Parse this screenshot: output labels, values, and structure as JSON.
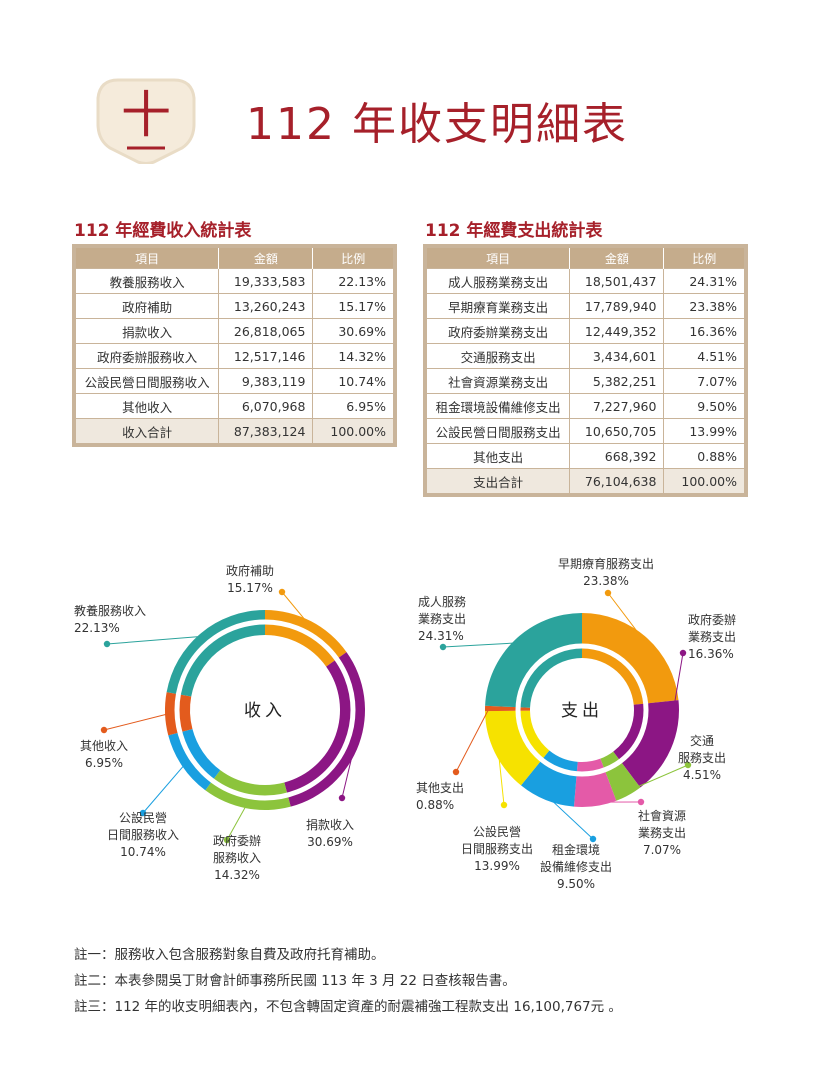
{
  "header": {
    "badge_char": "十",
    "title": "112 年收支明細表"
  },
  "income_table": {
    "title": "112 年經費收入統計表",
    "columns": [
      "項目",
      "金額",
      "比例"
    ],
    "rows": [
      {
        "item": "教養服務收入",
        "amount": "19,333,583",
        "ratio": "22.13%"
      },
      {
        "item": "政府補助",
        "amount": "13,260,243",
        "ratio": "15.17%"
      },
      {
        "item": "捐款收入",
        "amount": "26,818,065",
        "ratio": "30.69%"
      },
      {
        "item": "政府委辦服務收入",
        "amount": "12,517,146",
        "ratio": "14.32%"
      },
      {
        "item": "公設民營日間服務收入",
        "amount": "9,383,119",
        "ratio": "10.74%"
      },
      {
        "item": "其他收入",
        "amount": "6,070,968",
        "ratio": "6.95%"
      }
    ],
    "total": {
      "item": "收入合計",
      "amount": "87,383,124",
      "ratio": "100.00%"
    }
  },
  "expense_table": {
    "title": "112 年經費支出統計表",
    "columns": [
      "項目",
      "金額",
      "比例"
    ],
    "rows": [
      {
        "item": "成人服務業務支出",
        "amount": "18,501,437",
        "ratio": "24.31%"
      },
      {
        "item": "早期療育業務支出",
        "amount": "17,789,940",
        "ratio": "23.38%"
      },
      {
        "item": "政府委辦業務支出",
        "amount": "12,449,352",
        "ratio": "16.36%"
      },
      {
        "item": "交通服務支出",
        "amount": "3,434,601",
        "ratio": "4.51%"
      },
      {
        "item": "社會資源業務支出",
        "amount": "5,382,251",
        "ratio": "7.07%"
      },
      {
        "item": "租金環境設備維修支出",
        "amount": "7,227,960",
        "ratio": "9.50%"
      },
      {
        "item": "公設民營日間服務支出",
        "amount": "10,650,705",
        "ratio": "13.99%"
      },
      {
        "item": "其他支出",
        "amount": "668,392",
        "ratio": "0.88%"
      }
    ],
    "total": {
      "item": "支出合計",
      "amount": "76,104,638",
      "ratio": "100.00%"
    }
  },
  "chart_data": [
    {
      "type": "pie",
      "title": "收入",
      "categories": [
        "政府補助",
        "捐款收入",
        "政府委辦服務收入",
        "公設民營日間服務收入",
        "其他收入",
        "教養服務收入"
      ],
      "values": [
        15.17,
        30.69,
        14.32,
        10.74,
        6.95,
        22.13
      ],
      "labels": [
        [
          "政府補助",
          "15.17%"
        ],
        [
          "捐款收入",
          "30.69%"
        ],
        [
          "政府委辦",
          "服務收入",
          "14.32%"
        ],
        [
          "公設民營",
          "日間服務收入",
          "10.74%"
        ],
        [
          "其他收入",
          "6.95%"
        ],
        [
          "教養服務收入",
          "22.13%"
        ]
      ],
      "colors": [
        "#f29a0e",
        "#8c1684",
        "#8cc43c",
        "#199fe0",
        "#e35b1d",
        "#2ba39c"
      ]
    },
    {
      "type": "pie",
      "title": "支出",
      "categories": [
        "早期療育服務支出",
        "政府委辦業務支出",
        "交通服務支出",
        "社會資源業務支出",
        "租金環境設備維修支出",
        "公設民營日間服務支出",
        "其他支出",
        "成人服務業務支出"
      ],
      "values": [
        23.38,
        16.36,
        4.51,
        7.07,
        9.5,
        13.99,
        0.88,
        24.31
      ],
      "labels": [
        [
          "早期療育服務支出",
          "23.38%"
        ],
        [
          "政府委辦",
          "業務支出",
          "16.36%"
        ],
        [
          "交通",
          "服務支出",
          "4.51%"
        ],
        [
          "社會資源",
          "業務支出",
          "7.07%"
        ],
        [
          "租金環境",
          "設備維修支出",
          "9.50%"
        ],
        [
          "公設民營",
          "日間服務支出",
          "13.99%"
        ],
        [
          "其他支出",
          "0.88%"
        ],
        [
          "成人服務",
          "業務支出",
          "24.31%"
        ]
      ],
      "colors": [
        "#f29a0e",
        "#8c1684",
        "#8cc43c",
        "#e45aa8",
        "#199fe0",
        "#f6e200",
        "#e35b1d",
        "#2ba39c"
      ]
    }
  ],
  "notes": [
    "註一：服務收入包含服務對象自費及政府托育補助。",
    "註二：本表參閱吳丁財會計師事務所民國 113 年 3 月 22 日查核報告書。",
    "註三：112 年的收支明細表內，不包含轉固定資產的耐震補強工程款支出 16,100,767元 。"
  ]
}
